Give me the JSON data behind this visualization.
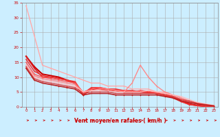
{
  "background_color": "#cceeff",
  "grid_color": "#aaaaaa",
  "xlabel": "Vent moyen/en rafales ( km/h )",
  "xlabel_color": "#cc0000",
  "tick_color": "#cc0000",
  "xlim": [
    -0.5,
    23.5
  ],
  "ylim": [
    0,
    35
  ],
  "yticks": [
    0,
    5,
    10,
    15,
    20,
    25,
    30,
    35
  ],
  "xticks": [
    0,
    1,
    2,
    3,
    4,
    5,
    6,
    7,
    8,
    9,
    10,
    11,
    12,
    13,
    14,
    15,
    16,
    17,
    18,
    19,
    20,
    21,
    22,
    23
  ],
  "series": [
    {
      "x": [
        0,
        1,
        2,
        3,
        4,
        5,
        6,
        7,
        8,
        9,
        10,
        11,
        12,
        13,
        14,
        15,
        16,
        17,
        18,
        19,
        20,
        21,
        22,
        23
      ],
      "y": [
        34,
        24,
        14,
        13,
        12,
        11,
        10,
        9,
        8,
        8,
        7,
        7,
        7,
        6,
        6,
        6,
        5,
        5,
        4,
        3,
        2,
        1,
        0.5,
        0.5
      ],
      "color": "#ffaaaa",
      "lw": 1.0
    },
    {
      "x": [
        0,
        1,
        2,
        3,
        4,
        5,
        6,
        7,
        8,
        9,
        10,
        11,
        12,
        13,
        14,
        15,
        16,
        17,
        18,
        19,
        20,
        21,
        22,
        23
      ],
      "y": [
        17,
        13.5,
        11,
        10.5,
        10,
        9,
        8,
        4,
        6,
        6,
        5.5,
        5.5,
        5,
        5,
        5,
        5,
        4.5,
        4,
        3.5,
        2,
        1,
        0.5,
        0.3,
        0.2
      ],
      "color": "#cc0000",
      "lw": 1.5
    },
    {
      "x": [
        0,
        1,
        2,
        3,
        4,
        5,
        6,
        7,
        8,
        9,
        10,
        11,
        12,
        13,
        14,
        15,
        16,
        17,
        18,
        19,
        20,
        21,
        22,
        23
      ],
      "y": [
        17,
        13,
        10,
        10,
        9.5,
        9,
        8,
        4,
        6,
        6,
        5.5,
        5.5,
        5,
        5,
        5,
        4.8,
        4.5,
        3.8,
        3.2,
        1.8,
        0.8,
        0.4,
        0.2,
        0.1
      ],
      "color": "#dd2222",
      "lw": 1.2
    },
    {
      "x": [
        0,
        1,
        2,
        3,
        4,
        5,
        6,
        7,
        8,
        9,
        10,
        11,
        12,
        13,
        14,
        15,
        16,
        17,
        18,
        19,
        20,
        21,
        22,
        23
      ],
      "y": [
        16,
        12,
        10.5,
        10,
        9.5,
        9,
        8.5,
        4.5,
        6.5,
        6.5,
        6,
        6,
        5.5,
        5.5,
        5,
        5,
        4.5,
        4,
        3,
        1.8,
        0.8,
        0.4,
        0.2,
        0.1
      ],
      "color": "#ee3333",
      "lw": 1.1
    },
    {
      "x": [
        0,
        1,
        2,
        3,
        4,
        5,
        6,
        7,
        8,
        9,
        10,
        11,
        12,
        13,
        14,
        15,
        16,
        17,
        18,
        19,
        20,
        21,
        22,
        23
      ],
      "y": [
        15,
        11,
        10,
        9.5,
        9,
        8.5,
        8,
        5,
        6,
        6.5,
        6,
        5.5,
        5.5,
        5,
        5.5,
        5.2,
        4.8,
        4.5,
        3.5,
        2.5,
        1.5,
        1.0,
        0.5,
        0.3
      ],
      "color": "#ff5555",
      "lw": 1.0
    },
    {
      "x": [
        0,
        1,
        2,
        3,
        4,
        5,
        6,
        7,
        8,
        9,
        10,
        11,
        12,
        13,
        14,
        15,
        16,
        17,
        18,
        19,
        20,
        21,
        22,
        23
      ],
      "y": [
        14,
        10.5,
        9.5,
        9,
        8.5,
        8,
        7.5,
        5,
        5.5,
        6,
        6,
        5.5,
        5,
        8,
        14,
        10,
        7,
        5,
        4,
        3,
        2,
        1.2,
        0.8,
        0.3
      ],
      "color": "#ff8888",
      "lw": 1.0
    },
    {
      "x": [
        0,
        1,
        2,
        3,
        4,
        5,
        6,
        7,
        8,
        9,
        10,
        11,
        12,
        13,
        14,
        15,
        16,
        17,
        18,
        19,
        20,
        21,
        22,
        23
      ],
      "y": [
        14,
        10,
        9,
        8.5,
        8,
        7.5,
        7,
        5,
        5.5,
        5.5,
        5.5,
        5,
        5,
        5,
        5,
        5.5,
        5,
        4.5,
        4,
        3.5,
        2.5,
        1.5,
        1.0,
        0.5
      ],
      "color": "#ffbbbb",
      "lw": 0.9
    },
    {
      "x": [
        0,
        1,
        2,
        3,
        4,
        5,
        6,
        7,
        8,
        9,
        10,
        11,
        12,
        13,
        14,
        15,
        16,
        17,
        18,
        19,
        20,
        21,
        22,
        23
      ],
      "y": [
        13.5,
        9.5,
        8.5,
        8,
        7.5,
        7,
        6.5,
        4.5,
        5,
        5,
        5,
        4.5,
        4.5,
        4.5,
        4.5,
        4.5,
        4.5,
        4,
        3.5,
        2.5,
        2,
        1.2,
        0.8,
        0.4
      ],
      "color": "#dd4444",
      "lw": 1.0
    },
    {
      "x": [
        0,
        1,
        2,
        3,
        4,
        5,
        6,
        7,
        8,
        9,
        10,
        11,
        12,
        13,
        14,
        15,
        16,
        17,
        18,
        19,
        20,
        21,
        22,
        23
      ],
      "y": [
        13,
        9,
        8,
        7.5,
        7,
        6.5,
        6,
        4,
        4.5,
        4.5,
        4.5,
        4,
        4,
        4,
        4,
        4,
        4,
        3.5,
        3,
        2,
        1.5,
        1.0,
        0.6,
        0.3
      ],
      "color": "#bb2222",
      "lw": 1.2
    }
  ],
  "arrow_color": "#cc0000",
  "spine_color": "#888888"
}
